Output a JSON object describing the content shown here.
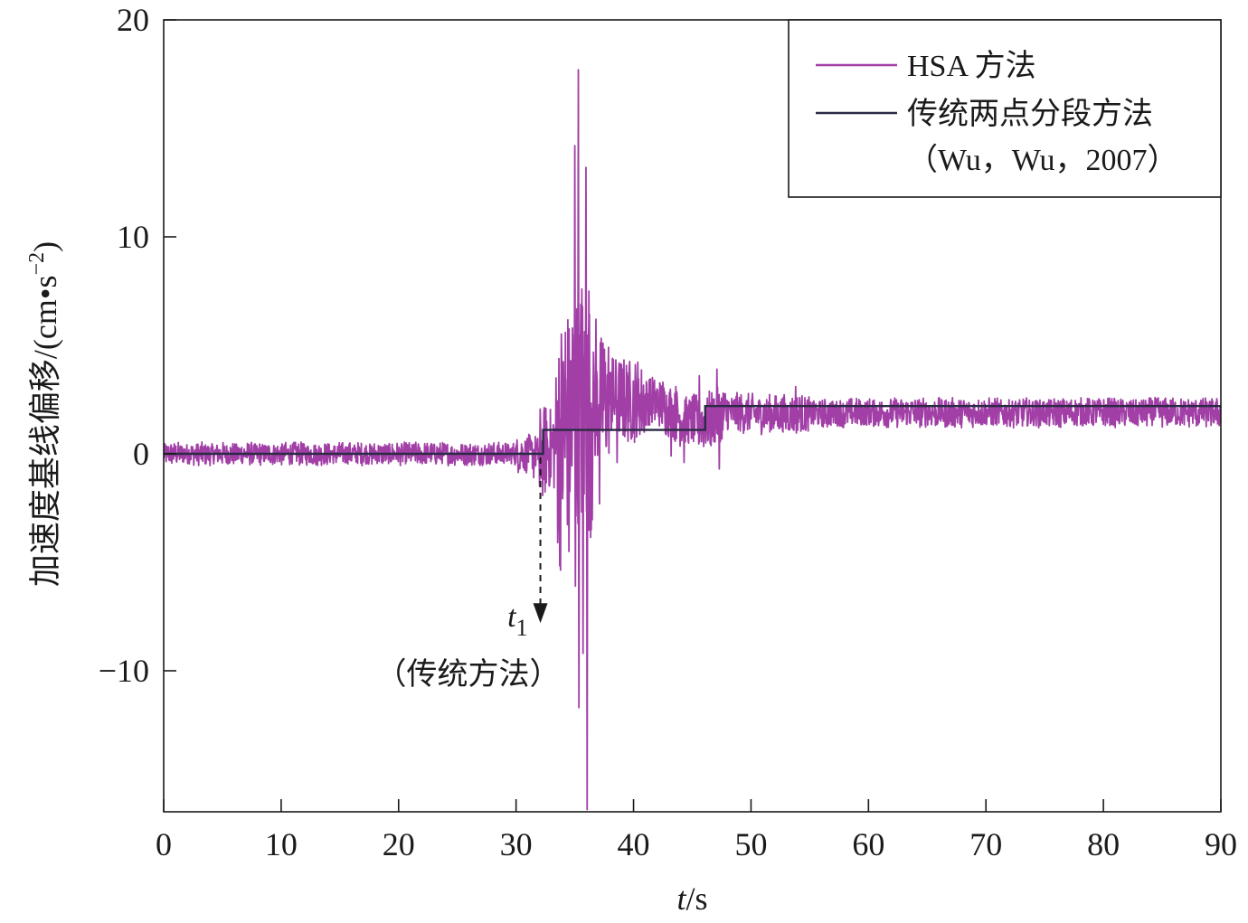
{
  "chart_data": {
    "type": "line",
    "xlabel": {
      "var": "t",
      "unit": "s"
    },
    "ylabel": {
      "text": "加速度基线偏移/",
      "unit_open": "(cm",
      "unit_dot": "•",
      "unit_s": "s",
      "unit_exp": "−2",
      "unit_close": ")"
    },
    "xlim": [
      0,
      90
    ],
    "ylim": [
      -16.5,
      20
    ],
    "xticks": [
      0,
      10,
      20,
      30,
      40,
      50,
      60,
      70,
      80,
      90
    ],
    "yticks": [
      -10,
      0,
      10,
      20
    ],
    "ytick_labels": [
      "−10",
      "0",
      "10",
      "20"
    ],
    "legend": {
      "position": "top-right",
      "entries": [
        {
          "label": "HSA 方法",
          "color": "#a13fa6"
        },
        {
          "label": "传统两点分段方法",
          "label2": "（Wu，Wu，2007）",
          "color": "#2a2a44"
        }
      ]
    },
    "series": [
      {
        "name": "HSA 方法",
        "color": "#a13fa6",
        "baseline": [
          [
            0,
            0
          ],
          [
            30,
            0
          ],
          [
            32,
            0
          ],
          [
            34,
            0.6
          ],
          [
            35,
            1.8
          ],
          [
            38,
            2.5
          ],
          [
            42,
            2.4
          ],
          [
            44,
            1.6
          ],
          [
            46,
            1.4
          ],
          [
            48,
            1.9
          ],
          [
            52,
            1.8
          ],
          [
            60,
            1.9
          ],
          [
            70,
            1.9
          ],
          [
            80,
            1.9
          ],
          [
            90,
            1.9
          ]
        ],
        "peaks": [
          [
            33.4,
            3.5
          ],
          [
            33.8,
            -2.5
          ],
          [
            34.2,
            5.6
          ],
          [
            34.5,
            -4.5
          ],
          [
            34.8,
            5.8
          ],
          [
            35.0,
            14.2
          ],
          [
            35.05,
            -6.1
          ],
          [
            35.3,
            17.7
          ],
          [
            35.35,
            -11.7
          ],
          [
            35.6,
            7.6
          ],
          [
            35.7,
            -9.2
          ],
          [
            35.95,
            13.2
          ],
          [
            36.05,
            -16.4
          ],
          [
            36.2,
            7.5
          ],
          [
            36.4,
            -3.5
          ],
          [
            36.8,
            6.2
          ],
          [
            37.1,
            -2.3
          ],
          [
            37.4,
            5.1
          ],
          [
            38.2,
            4.4
          ],
          [
            38.6,
            -0.4
          ],
          [
            39.1,
            3.9
          ],
          [
            39.6,
            3.6
          ],
          [
            40.2,
            3.0
          ],
          [
            42.5,
            3.3
          ],
          [
            43.2,
            -0.1
          ],
          [
            43.6,
            3.1
          ],
          [
            44.3,
            -0.4
          ],
          [
            45.1,
            2.7
          ],
          [
            45.6,
            3.6
          ],
          [
            46.3,
            1.3
          ],
          [
            47.1,
            3.9
          ],
          [
            47.3,
            -0.7
          ],
          [
            47.6,
            1.1
          ],
          [
            49.0,
            2.6
          ],
          [
            53.8,
            3.1
          ],
          [
            32.0,
            -1.5
          ],
          [
            31.5,
            -1.1
          ],
          [
            32.6,
            1.5
          ],
          [
            33.0,
            1.0
          ]
        ]
      },
      {
        "name": "传统两点分段方法",
        "color": "#2a2a44",
        "points": [
          [
            0,
            0
          ],
          [
            32.3,
            0
          ],
          [
            32.3,
            1.1
          ],
          [
            46.1,
            1.1
          ],
          [
            46.1,
            2.2
          ],
          [
            90,
            2.2
          ]
        ]
      }
    ],
    "annotation": {
      "label_var": "t",
      "label_sub": "1",
      "label2": "（传统方法）",
      "x": 32.3,
      "y_from": 0,
      "y_to": -7.8
    }
  }
}
